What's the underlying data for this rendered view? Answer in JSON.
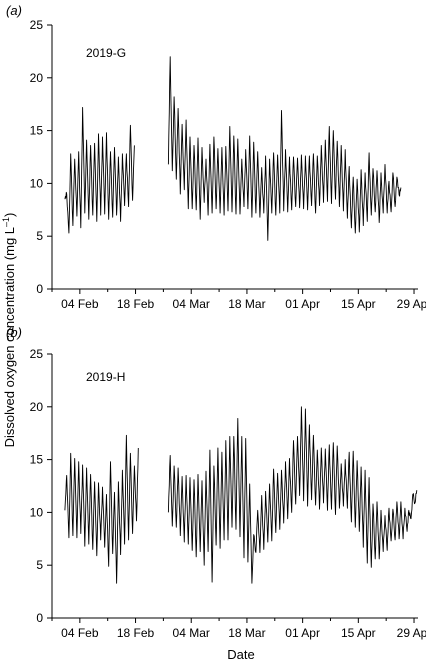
{
  "chart_data": {
    "type": "line",
    "xlabel": "Date",
    "ylabel": "Dissolved oxygen concentration (mg L",
    "ylabel_superscript": "–1",
    "ylabel_close": ")",
    "ylim": [
      0,
      25
    ],
    "yticks": [
      0,
      5,
      10,
      15,
      20,
      25
    ],
    "xlim": [
      "2019-01-28",
      "2019-04-30"
    ],
    "xtick_dates": [
      "2019-02-04",
      "2019-02-18",
      "2019-03-04",
      "2019-03-18",
      "2019-04-01",
      "2019-04-15",
      "2019-04-29"
    ],
    "xtick_labels": [
      "04 Feb",
      "18 Feb",
      "04 Mar",
      "18 Mar",
      "01 Apr",
      "15 Apr",
      "29 Apr"
    ],
    "grid": false,
    "line_color": "#000000",
    "panels": [
      {
        "letter": "a",
        "name": "2019-G",
        "series": {
          "start": "2019-01-31",
          "step_days": 1,
          "min": [
            8.5,
            5.3,
            6.0,
            6.9,
            5.8,
            7.2,
            6.6,
            7.0,
            6.4,
            7.0,
            7.1,
            6.6,
            6.8,
            7.0,
            6.4,
            7.9,
            7.8,
            8.4,
            null,
            null,
            null,
            null,
            null,
            null,
            null,
            null,
            11.8,
            11.2,
            10.4,
            9.0,
            9.4,
            7.6,
            7.6,
            7.5,
            6.6,
            8.2,
            7.0,
            7.2,
            7.6,
            7.2,
            7.0,
            7.4,
            7.3,
            7.1,
            7.1,
            7.8,
            7.6,
            6.8,
            7.2,
            6.8,
            7.2,
            4.6,
            7.2,
            7.0,
            7.2,
            7.4,
            7.3,
            7.5,
            7.8,
            7.7,
            7.6,
            7.5,
            7.9,
            7.2,
            7.9,
            8.2,
            8.3,
            8.1,
            8.5,
            7.8,
            7.4,
            6.7,
            5.8,
            5.3,
            5.4,
            6.0,
            6.4,
            7.0,
            7.3,
            6.3,
            7.2,
            7.2,
            7.3,
            7.8,
            8.9
          ],
          "max": [
            9.0,
            12.8,
            12.3,
            13.0,
            17.2,
            14.1,
            13.6,
            13.8,
            14.7,
            14.4,
            14.8,
            13.0,
            13.4,
            12.5,
            12.8,
            12.8,
            15.5,
            13.6,
            null,
            null,
            null,
            null,
            null,
            null,
            null,
            null,
            22.0,
            18.2,
            17.1,
            15.6,
            16.0,
            14.4,
            13.6,
            14.3,
            13.4,
            12.3,
            13.7,
            14.4,
            13.3,
            13.4,
            13.5,
            15.4,
            14.5,
            14.2,
            12.3,
            13.2,
            14.5,
            13.9,
            13.0,
            11.5,
            12.6,
            12.3,
            12.9,
            12.7,
            16.9,
            13.2,
            12.5,
            12.5,
            12.4,
            12.7,
            12.6,
            12.6,
            12.8,
            12.6,
            13.6,
            14.1,
            15.4,
            15.0,
            14.0,
            13.6,
            13.2,
            11.6,
            10.6,
            10.4,
            11.3,
            11.0,
            12.9,
            11.4,
            11.2,
            11.0,
            11.8,
            10.2,
            11.0,
            10.6,
            9.6
          ]
        }
      },
      {
        "letter": "b",
        "name": "2019-H",
        "series": {
          "start": "2019-01-31",
          "step_days": 1,
          "min": [
            10.2,
            7.6,
            7.8,
            7.6,
            8.0,
            6.8,
            7.0,
            6.5,
            5.9,
            7.4,
            6.7,
            4.9,
            6.1,
            3.3,
            6.0,
            7.0,
            7.4,
            8.0,
            9.2,
            null,
            null,
            null,
            null,
            null,
            null,
            null,
            10.0,
            8.7,
            8.6,
            7.8,
            7.2,
            7.0,
            6.4,
            5.8,
            6.3,
            5.0,
            6.3,
            3.4,
            6.9,
            6.6,
            7.4,
            7.4,
            8.6,
            8.4,
            7.7,
            5.7,
            5.3,
            3.3,
            6.2,
            6.2,
            6.5,
            7.2,
            7.3,
            8.1,
            8.4,
            9.0,
            9.4,
            10.0,
            10.8,
            11.6,
            11.1,
            10.6,
            11.2,
            10.7,
            10.3,
            10.9,
            10.2,
            10.3,
            9.8,
            10.4,
            10.6,
            10.4,
            9.1,
            8.6,
            8.2,
            6.7,
            5.2,
            4.8,
            5.6,
            5.6,
            6.3,
            6.4,
            7.3,
            7.4,
            7.5,
            7.5,
            8.2,
            9.4,
            10.9
          ],
          "max": [
            13.5,
            15.6,
            15.1,
            14.8,
            14.5,
            14.2,
            13.6,
            12.9,
            12.8,
            12.4,
            11.7,
            14.8,
            11.9,
            12.9,
            14.0,
            17.3,
            15.6,
            14.4,
            16.1,
            null,
            null,
            null,
            null,
            null,
            null,
            null,
            15.4,
            14.4,
            14.2,
            13.4,
            13.5,
            13.3,
            13.1,
            13.6,
            13.0,
            13.9,
            15.9,
            14.4,
            16.1,
            15.7,
            16.8,
            17.2,
            17.2,
            18.9,
            17.2,
            17.0,
            12.7,
            7.9,
            10.2,
            11.6,
            12.0,
            12.7,
            14.1,
            13.7,
            14.0,
            14.8,
            15.1,
            16.8,
            17.2,
            20.0,
            19.8,
            18.3,
            17.3,
            15.9,
            16.1,
            16.0,
            16.4,
            16.6,
            16.3,
            14.6,
            15.0,
            15.7,
            15.8,
            14.9,
            14.3,
            14.0,
            13.3,
            10.8,
            11.0,
            10.2,
            9.7,
            10.4,
            10.3,
            11.0,
            11.0,
            10.4,
            10.2,
            11.7,
            12.1
          ]
        }
      }
    ]
  }
}
